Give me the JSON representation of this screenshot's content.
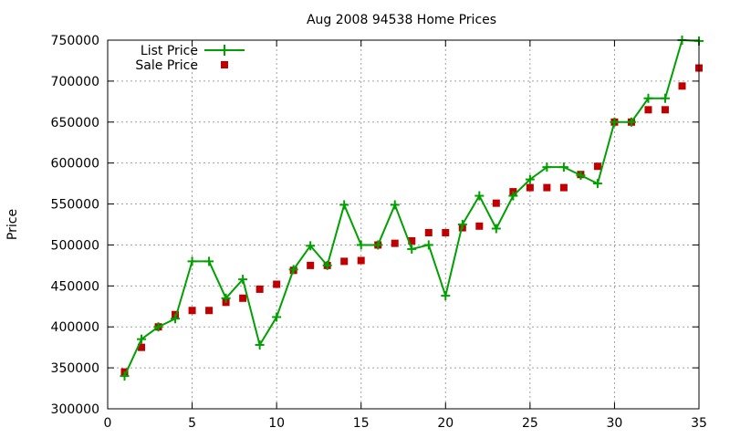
{
  "chart_data": {
    "type": "line",
    "title": "Aug 2008 94538 Home Prices",
    "xlabel": "",
    "ylabel": "Price",
    "xlim": [
      0,
      35
    ],
    "ylim": [
      300000,
      750000
    ],
    "xticks": [
      0,
      5,
      10,
      15,
      20,
      25,
      30,
      35
    ],
    "yticks": [
      300000,
      350000,
      400000,
      450000,
      500000,
      550000,
      600000,
      650000,
      700000,
      750000
    ],
    "grid": true,
    "legend_position": "top-left",
    "series": [
      {
        "name": "List Price",
        "style": "line-with-plus-markers",
        "color": "#00a000",
        "x": [
          1,
          2,
          3,
          4,
          5,
          6,
          7,
          8,
          9,
          10,
          11,
          12,
          13,
          14,
          15,
          16,
          17,
          18,
          19,
          20,
          21,
          22,
          23,
          24,
          25,
          26,
          27,
          28,
          29,
          30,
          31,
          32,
          33,
          34,
          35
        ],
        "y": [
          340000,
          385000,
          400000,
          410000,
          480000,
          480000,
          435000,
          458000,
          378000,
          412000,
          470000,
          499000,
          475000,
          549000,
          500000,
          500000,
          549000,
          495000,
          500000,
          438000,
          525000,
          560000,
          520000,
          560000,
          580000,
          595000,
          595000,
          585000,
          575000,
          650000,
          650000,
          679000,
          679000,
          750000,
          749000
        ]
      },
      {
        "name": "Sale Price",
        "style": "square-points",
        "color": "#c00000",
        "x": [
          1,
          2,
          3,
          4,
          5,
          6,
          7,
          8,
          9,
          10,
          11,
          12,
          13,
          14,
          15,
          16,
          17,
          18,
          19,
          20,
          21,
          22,
          23,
          24,
          25,
          26,
          27,
          28,
          29,
          30,
          31,
          32,
          33,
          34,
          35
        ],
        "y": [
          345000,
          375000,
          400000,
          415000,
          420000,
          420000,
          430000,
          435000,
          446000,
          452000,
          469000,
          475000,
          475000,
          480000,
          481000,
          500000,
          502000,
          505000,
          515000,
          515000,
          521000,
          523000,
          551000,
          565000,
          570000,
          570000,
          570000,
          586000,
          596000,
          650000,
          650000,
          665000,
          665000,
          694000,
          716000
        ]
      }
    ]
  }
}
